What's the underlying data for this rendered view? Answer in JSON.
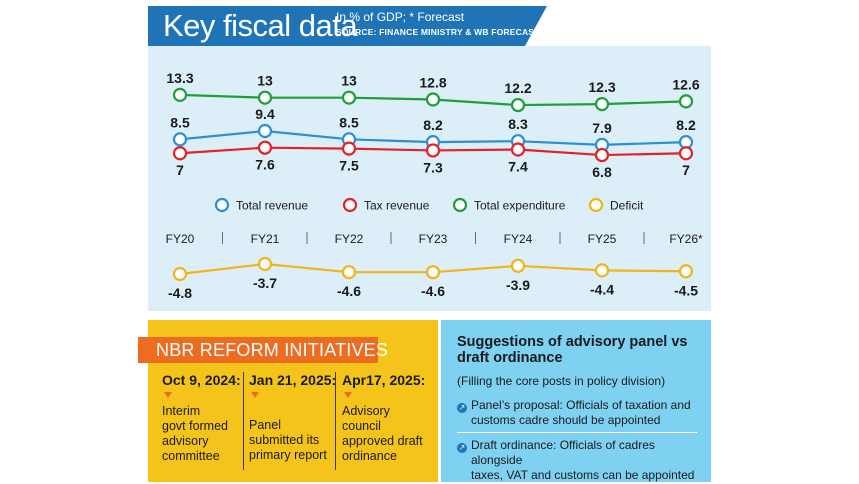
{
  "header": {
    "title": "Key fiscal data",
    "subtitle": "In % of GDP; * Forecast",
    "source": "SOURCE: FINANCE MINISTRY & WB FORECAST"
  },
  "colors": {
    "title_bar": "#1f74b8",
    "chart_bg": "#dceef8",
    "total_revenue": "#2a8fd6",
    "tax_revenue": "#e42127",
    "total_expenditure": "#1f9e3a",
    "deficit": "#f2b41b",
    "nbr_bg": "#f5c41b",
    "nbr_banner": "#ee6b22",
    "suggestions_bg": "#7fd1f2"
  },
  "chart_data": {
    "type": "line",
    "categories": [
      "FY20",
      "FY21",
      "FY22",
      "FY23",
      "FY24",
      "FY25",
      "FY26*"
    ],
    "series": [
      {
        "name": "Total revenue",
        "values": [
          8.5,
          9.4,
          8.5,
          8.2,
          8.3,
          7.9,
          8.2
        ],
        "labels": [
          "8.5",
          "9.4",
          "8.5",
          "8.2",
          "8.3",
          "7.9",
          "8.2"
        ]
      },
      {
        "name": "Tax revenue",
        "values": [
          7,
          7.6,
          7.5,
          7.3,
          7.4,
          6.8,
          7
        ],
        "labels": [
          "7",
          "7.6",
          "7.5",
          "7.3",
          "7.4",
          "6.8",
          "7"
        ]
      },
      {
        "name": "Total expenditure",
        "values": [
          13.3,
          13,
          13,
          12.8,
          12.2,
          12.3,
          12.6
        ],
        "labels": [
          "13.3",
          "13",
          "13",
          "12.8",
          "12.2",
          "12.3",
          "12.6"
        ]
      },
      {
        "name": "Deficit",
        "values": [
          -4.8,
          -3.7,
          -4.6,
          -4.6,
          -3.9,
          -4.4,
          -4.5
        ],
        "labels": [
          "-4.8",
          "-3.7",
          "-4.6",
          "-4.6",
          "-3.9",
          "-4.4",
          "-4.5"
        ]
      }
    ],
    "legend_position": "middle",
    "grid": false
  },
  "nbr": {
    "title": "NBR REFORM INITIATIVES",
    "items": [
      {
        "date": "Oct 9, 2024:",
        "lines": [
          "Interim",
          "govt formed",
          "advisory",
          "committee"
        ]
      },
      {
        "date": "Jan 21, 2025:",
        "lines": [
          "Panel",
          "submitted its",
          "primary report"
        ]
      },
      {
        "date": "Apr17, 2025:",
        "lines": [
          "Advisory",
          "council",
          "approved draft",
          "ordinance"
        ]
      }
    ]
  },
  "suggestions": {
    "title": "Suggestions of advisory panel vs draft ordinance",
    "subtitle": "(Filling the core posts in policy division)",
    "bullet_icon": "arrow-circle-icon",
    "items": [
      {
        "lines": [
          "Panel’s proposal: Officials of taxation and",
          "customs cadre should be appointed"
        ]
      },
      {
        "lines": [
          "Draft ordinance: Officials of cadres alongside",
          "taxes, VAT and customs can be appointed"
        ]
      }
    ]
  }
}
